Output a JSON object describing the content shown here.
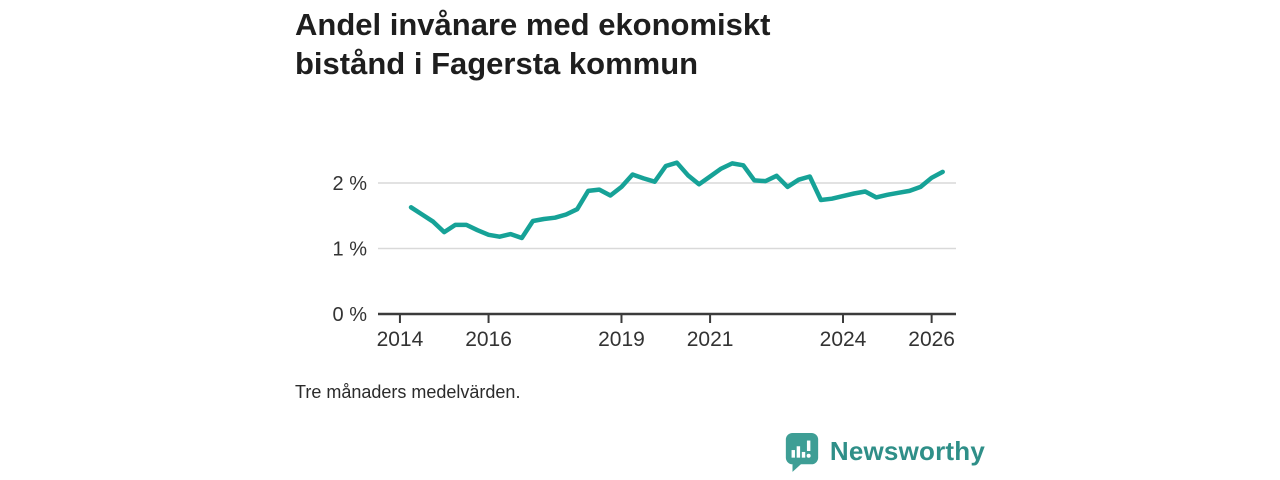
{
  "title": "Andel invånare med ekonomiskt bistånd i Fagersta kommun",
  "note": "Tre månaders medelvärden.",
  "brand": {
    "name": "Newsworthy"
  },
  "colors": {
    "line": "#16a297",
    "grid": "#d9d9d9",
    "axis": "#3b3b3b",
    "tick_text": "#333333",
    "title_text": "#1e1e1e",
    "brand_text": "#2f8f88",
    "brand_icon": "#3e9e95"
  },
  "chart_data": {
    "type": "line",
    "title": "Andel invånare med ekonomiskt bistånd i Fagersta kommun",
    "subtitle": "Tre månaders medelvärden.",
    "unit": "%",
    "grid": "horizontal",
    "legend": "none",
    "xlim": [
      2013.55,
      2026.55
    ],
    "ylim": [
      0,
      2.55
    ],
    "y_ticks": [
      {
        "value": 0,
        "label": "0 %"
      },
      {
        "value": 1,
        "label": "1 %"
      },
      {
        "value": 2,
        "label": "2 %"
      }
    ],
    "x_ticks": [
      {
        "value": 2014,
        "label": "2014"
      },
      {
        "value": 2016,
        "label": "2016"
      },
      {
        "value": 2019,
        "label": "2019"
      },
      {
        "value": 2021,
        "label": "2021"
      },
      {
        "value": 2024,
        "label": "2024"
      },
      {
        "value": 2026,
        "label": "2026"
      }
    ],
    "series": [
      {
        "name": "Andel invånare med ekonomiskt bistånd, Fagersta kommun",
        "x": [
          2014.25,
          2014.5,
          2014.75,
          2015.0,
          2015.25,
          2015.5,
          2015.75,
          2016.0,
          2016.25,
          2016.5,
          2016.75,
          2017.0,
          2017.25,
          2017.5,
          2017.75,
          2018.0,
          2018.25,
          2018.5,
          2018.75,
          2019.0,
          2019.25,
          2019.5,
          2019.75,
          2020.0,
          2020.25,
          2020.5,
          2020.75,
          2021.0,
          2021.25,
          2021.5,
          2021.75,
          2022.0,
          2022.25,
          2022.5,
          2022.75,
          2023.0,
          2023.25,
          2023.5,
          2023.75,
          2024.0,
          2024.25,
          2024.5,
          2024.75,
          2025.0,
          2025.25,
          2025.5,
          2025.75,
          2026.0,
          2026.25
        ],
        "y": [
          1.63,
          1.52,
          1.41,
          1.25,
          1.36,
          1.36,
          1.28,
          1.21,
          1.18,
          1.22,
          1.16,
          1.42,
          1.45,
          1.47,
          1.52,
          1.6,
          1.88,
          1.9,
          1.81,
          1.94,
          2.13,
          2.07,
          2.02,
          2.26,
          2.31,
          2.12,
          1.98,
          2.1,
          2.22,
          2.3,
          2.27,
          2.04,
          2.03,
          2.11,
          1.94,
          2.05,
          2.1,
          1.74,
          1.76,
          1.8,
          1.84,
          1.87,
          1.78,
          1.82,
          1.85,
          1.88,
          1.94,
          2.08,
          2.17
        ]
      }
    ]
  }
}
